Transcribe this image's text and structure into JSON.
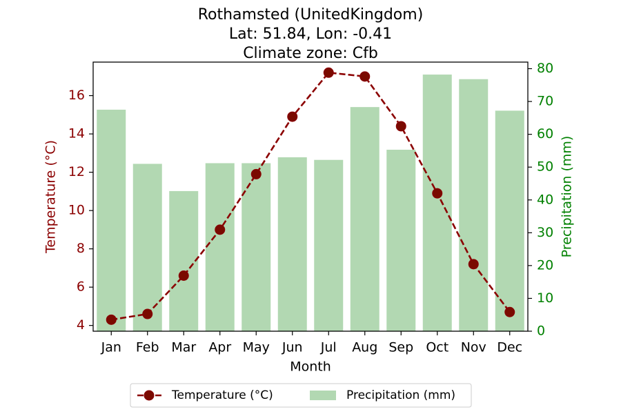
{
  "chart_data": {
    "type": "bar+line",
    "title_lines": [
      "Rothamsted (UnitedKingdom)",
      "Lat: 51.84, Lon: -0.41",
      "Climate zone: Cfb"
    ],
    "xlabel": "Month",
    "categories": [
      "Jan",
      "Feb",
      "Mar",
      "Apr",
      "May",
      "Jun",
      "Jul",
      "Aug",
      "Sep",
      "Oct",
      "Nov",
      "Dec"
    ],
    "temperature": {
      "name": "Temperature (°C)",
      "axis_label": "Temperature (°C)",
      "color": "#8b0000",
      "values": [
        4.3,
        4.6,
        6.6,
        9.0,
        11.9,
        14.9,
        17.2,
        17.0,
        14.4,
        10.9,
        7.2,
        4.7
      ],
      "ylim": [
        3.7,
        17.75
      ],
      "ticks": [
        4,
        6,
        8,
        10,
        12,
        14,
        16
      ]
    },
    "precipitation": {
      "name": "Precipitation (mm)",
      "axis_label": "Precipitation (mm)",
      "color": "#b2d8b2",
      "axis_color": "#008000",
      "values": [
        67.5,
        51.0,
        42.7,
        51.2,
        51.2,
        53.0,
        52.2,
        68.3,
        55.3,
        78.2,
        76.8,
        67.2
      ],
      "ylim": [
        0,
        82
      ],
      "ticks": [
        0,
        10,
        20,
        30,
        40,
        50,
        60,
        70,
        80
      ]
    },
    "legend_position": "below"
  }
}
